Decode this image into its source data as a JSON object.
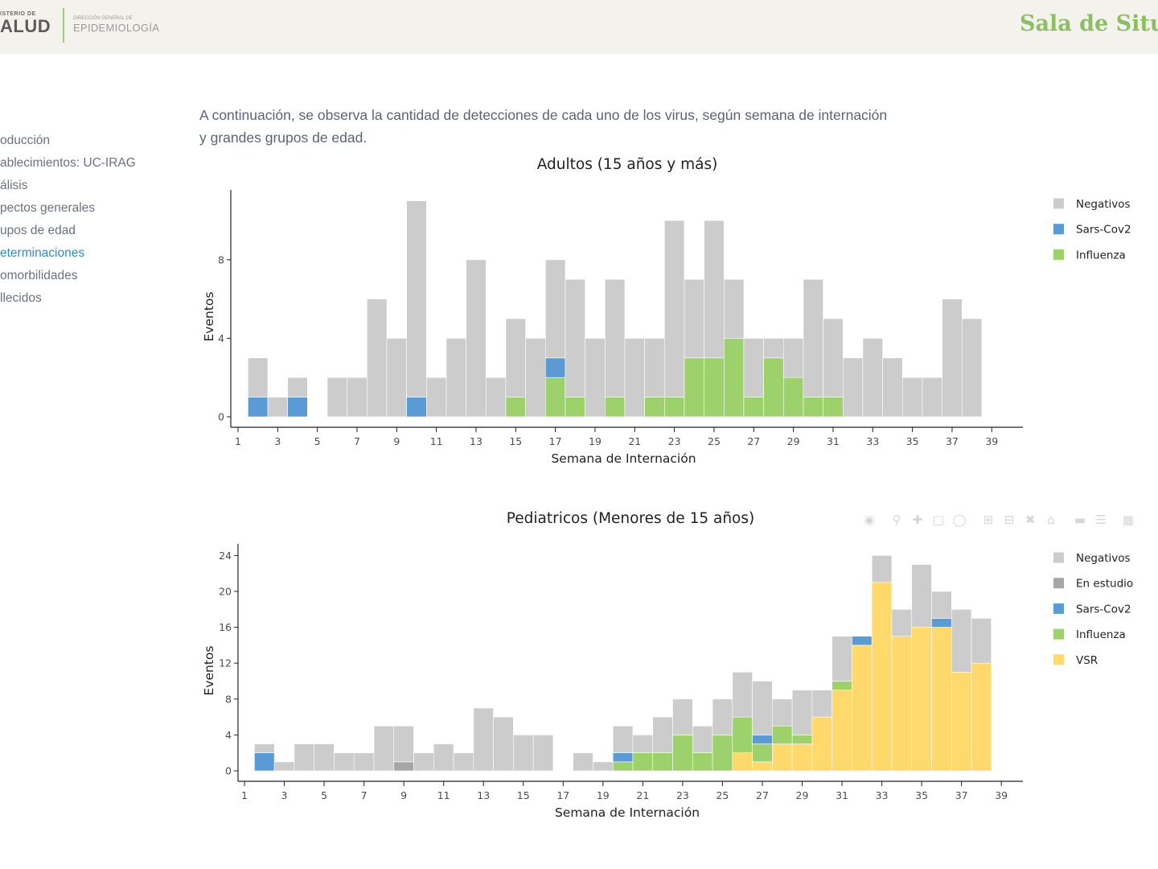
{
  "header": {
    "logo_top": "ISTERIO DE",
    "logo_main": "ALUD",
    "logo_sub_top": "DIRECCIÓN GENERAL DE",
    "logo_sub_main": "EPIDEMIOLOGÍA",
    "site_title": "Sala de Situa"
  },
  "toc": {
    "items": [
      {
        "label": "oducción",
        "active": false
      },
      {
        "label": "ablecimientos: UC-IRAG",
        "active": false
      },
      {
        "label": "álisis",
        "active": false
      },
      {
        "label": "pectos generales",
        "active": false
      },
      {
        "label": "upos de edad",
        "active": false
      },
      {
        "label": "eterminaciones",
        "active": true
      },
      {
        "label": "omorbilidades",
        "active": false
      },
      {
        "label": "llecidos",
        "active": false
      }
    ]
  },
  "intro_text": "A continuación, se observa la cantidad de detecciones de cada uno de los virus, según semana de internación y grandes grupos de edad.",
  "colors": {
    "Negativos": "#cccccc",
    "En estudio": "#a6a6a6",
    "Sars-Cov2": "#5b9bd5",
    "Influenza": "#9dd16b",
    "VSR": "#ffd96b"
  },
  "chart_data": [
    {
      "type": "bar",
      "stacked": true,
      "title": "Adultos (15 años y más)",
      "xlabel": "Semana de Internación",
      "ylabel": "Eventos",
      "xlim": [
        1,
        39
      ],
      "ylim": [
        0,
        11.6
      ],
      "xticks": [
        1,
        3,
        5,
        7,
        9,
        11,
        13,
        15,
        17,
        19,
        21,
        23,
        25,
        27,
        29,
        31,
        33,
        35,
        37,
        39
      ],
      "yticks": [
        0,
        4,
        8
      ],
      "legend": "right",
      "categories": [
        2,
        3,
        4,
        6,
        7,
        8,
        9,
        10,
        11,
        12,
        13,
        14,
        15,
        16,
        17,
        18,
        19,
        20,
        21,
        22,
        23,
        24,
        25,
        26,
        27,
        28,
        29,
        30,
        31,
        32,
        33,
        34,
        35,
        36,
        37,
        38
      ],
      "series": [
        {
          "name": "Negativos",
          "values": [
            2,
            1,
            1,
            2,
            2,
            6,
            4,
            10,
            2,
            4,
            8,
            2,
            4,
            4,
            5,
            6,
            4,
            6,
            4,
            3,
            9,
            4,
            7,
            3,
            3,
            1,
            2,
            6,
            4,
            3,
            4,
            3,
            2,
            2,
            6,
            5
          ]
        },
        {
          "name": "Sars-Cov2",
          "values": [
            1,
            0,
            1,
            0,
            0,
            0,
            0,
            1,
            0,
            0,
            0,
            0,
            0,
            0,
            1,
            0,
            0,
            0,
            0,
            0,
            0,
            0,
            0,
            0,
            0,
            0,
            0,
            0,
            0,
            0,
            0,
            0,
            0,
            0,
            0,
            0
          ]
        },
        {
          "name": "Influenza",
          "values": [
            0,
            0,
            0,
            0,
            0,
            0,
            0,
            0,
            0,
            0,
            0,
            0,
            1,
            0,
            2,
            1,
            0,
            1,
            0,
            1,
            1,
            3,
            3,
            4,
            1,
            3,
            2,
            1,
            1,
            0,
            0,
            0,
            0,
            0,
            0,
            0
          ]
        }
      ]
    },
    {
      "type": "bar",
      "stacked": true,
      "title": "Pediatricos (Menores de 15 años)",
      "xlabel": "Semana de Internación",
      "ylabel": "Eventos",
      "xlim": [
        1,
        39
      ],
      "ylim": [
        0,
        25.2
      ],
      "xticks": [
        1,
        3,
        5,
        7,
        9,
        11,
        13,
        15,
        17,
        19,
        21,
        23,
        25,
        27,
        29,
        31,
        33,
        35,
        37,
        39
      ],
      "yticks": [
        0,
        4,
        8,
        12,
        16,
        20,
        24
      ],
      "legend": "right",
      "categories": [
        2,
        3,
        4,
        5,
        6,
        7,
        8,
        9,
        10,
        11,
        12,
        13,
        14,
        15,
        16,
        18,
        19,
        20,
        21,
        22,
        23,
        24,
        25,
        26,
        27,
        28,
        29,
        30,
        31,
        32,
        33,
        34,
        35,
        36,
        37,
        38
      ],
      "series": [
        {
          "name": "Negativos",
          "values": [
            1,
            1,
            3,
            3,
            2,
            2,
            5,
            4,
            2,
            3,
            2,
            7,
            6,
            4,
            4,
            2,
            1,
            3,
            2,
            4,
            4,
            3,
            4,
            5,
            6,
            3,
            5,
            3,
            5,
            0,
            3,
            3,
            7,
            3,
            7,
            5
          ]
        },
        {
          "name": "En estudio",
          "values": [
            0,
            0,
            0,
            0,
            0,
            0,
            0,
            1,
            0,
            0,
            0,
            0,
            0,
            0,
            0,
            0,
            0,
            0,
            0,
            0,
            0,
            0,
            0,
            0,
            0,
            0,
            0,
            0,
            0,
            0,
            0,
            0,
            0,
            0,
            0,
            0
          ]
        },
        {
          "name": "Sars-Cov2",
          "values": [
            2,
            0,
            0,
            0,
            0,
            0,
            0,
            0,
            0,
            0,
            0,
            0,
            0,
            0,
            0,
            0,
            0,
            1,
            0,
            0,
            0,
            0,
            0,
            0,
            1,
            0,
            0,
            0,
            0,
            1,
            0,
            0,
            0,
            1,
            0,
            0
          ]
        },
        {
          "name": "Influenza",
          "values": [
            0,
            0,
            0,
            0,
            0,
            0,
            0,
            0,
            0,
            0,
            0,
            0,
            0,
            0,
            0,
            0,
            0,
            1,
            2,
            2,
            4,
            2,
            4,
            4,
            2,
            2,
            1,
            0,
            1,
            0,
            0,
            0,
            0,
            0,
            0,
            0
          ]
        },
        {
          "name": "VSR",
          "values": [
            0,
            0,
            0,
            0,
            0,
            0,
            0,
            0,
            0,
            0,
            0,
            0,
            0,
            0,
            0,
            0,
            0,
            0,
            0,
            0,
            0,
            0,
            0,
            2,
            1,
            3,
            3,
            6,
            9,
            14,
            21,
            15,
            16,
            16,
            11,
            12
          ]
        }
      ]
    }
  ]
}
